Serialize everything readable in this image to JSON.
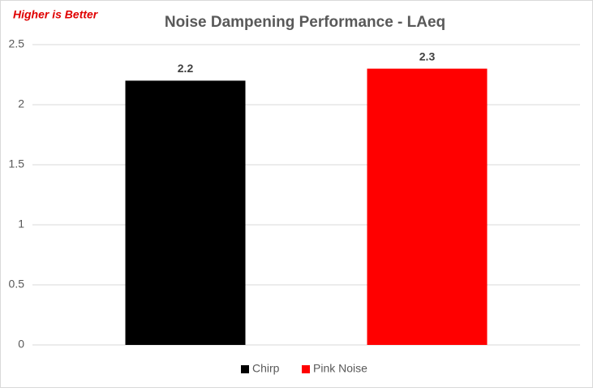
{
  "chart_data": {
    "type": "bar",
    "title": "Noise Dampening Performance - LAeq",
    "annotation": "Higher is Better",
    "categories": [
      null
    ],
    "series": [
      {
        "name": "Chirp",
        "color": "#000000",
        "values": [
          2.2
        ]
      },
      {
        "name": "Pink Noise",
        "color": "#ff0000",
        "values": [
          2.3
        ]
      }
    ],
    "ylim": [
      0,
      2.5
    ],
    "yticks": [
      0,
      0.5,
      1,
      1.5,
      2,
      2.5
    ],
    "grid": true,
    "legend": "bottom"
  }
}
